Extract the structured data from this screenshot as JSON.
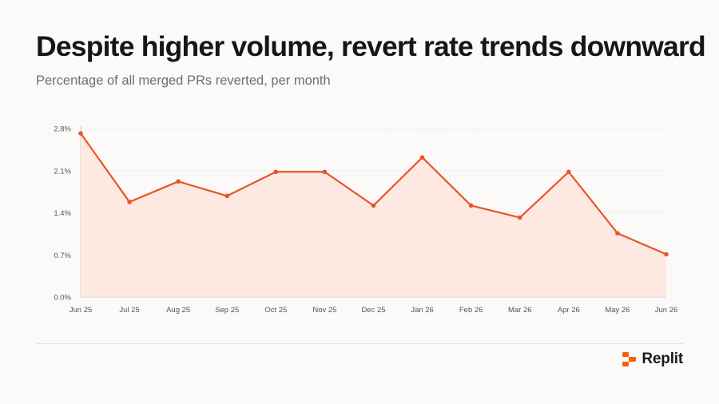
{
  "title": "Despite higher volume, revert rate trends downward",
  "subtitle": "Percentage of all merged PRs reverted, per month",
  "brand": {
    "name": "Replit",
    "icon": "replit-logo-icon",
    "color": "#f26207"
  },
  "colors": {
    "line": "#e8552a",
    "area": "#fde9e1",
    "grid": "#e3e1de"
  },
  "chart_data": {
    "type": "area",
    "categories": [
      "Jun 25",
      "Jul 25",
      "Aug 25",
      "Sep 25",
      "Oct 25",
      "Nov 25",
      "Dec 25",
      "Jan 26",
      "Feb 26",
      "Mar 26",
      "Apr 26",
      "May 26",
      "Jun 26"
    ],
    "series": [
      {
        "values": [
          2.72,
          1.58,
          1.92,
          1.68,
          2.08,
          2.08,
          1.52,
          2.32,
          1.52,
          1.32,
          2.08,
          1.06,
          0.71
        ]
      }
    ],
    "y_ticks": [
      "0.0%",
      "0.7%",
      "1.4%",
      "2.1%",
      "2.8%"
    ],
    "ylim": [
      0,
      2.8
    ],
    "grid": true,
    "legend": "none",
    "xlabel": "",
    "ylabel": ""
  }
}
